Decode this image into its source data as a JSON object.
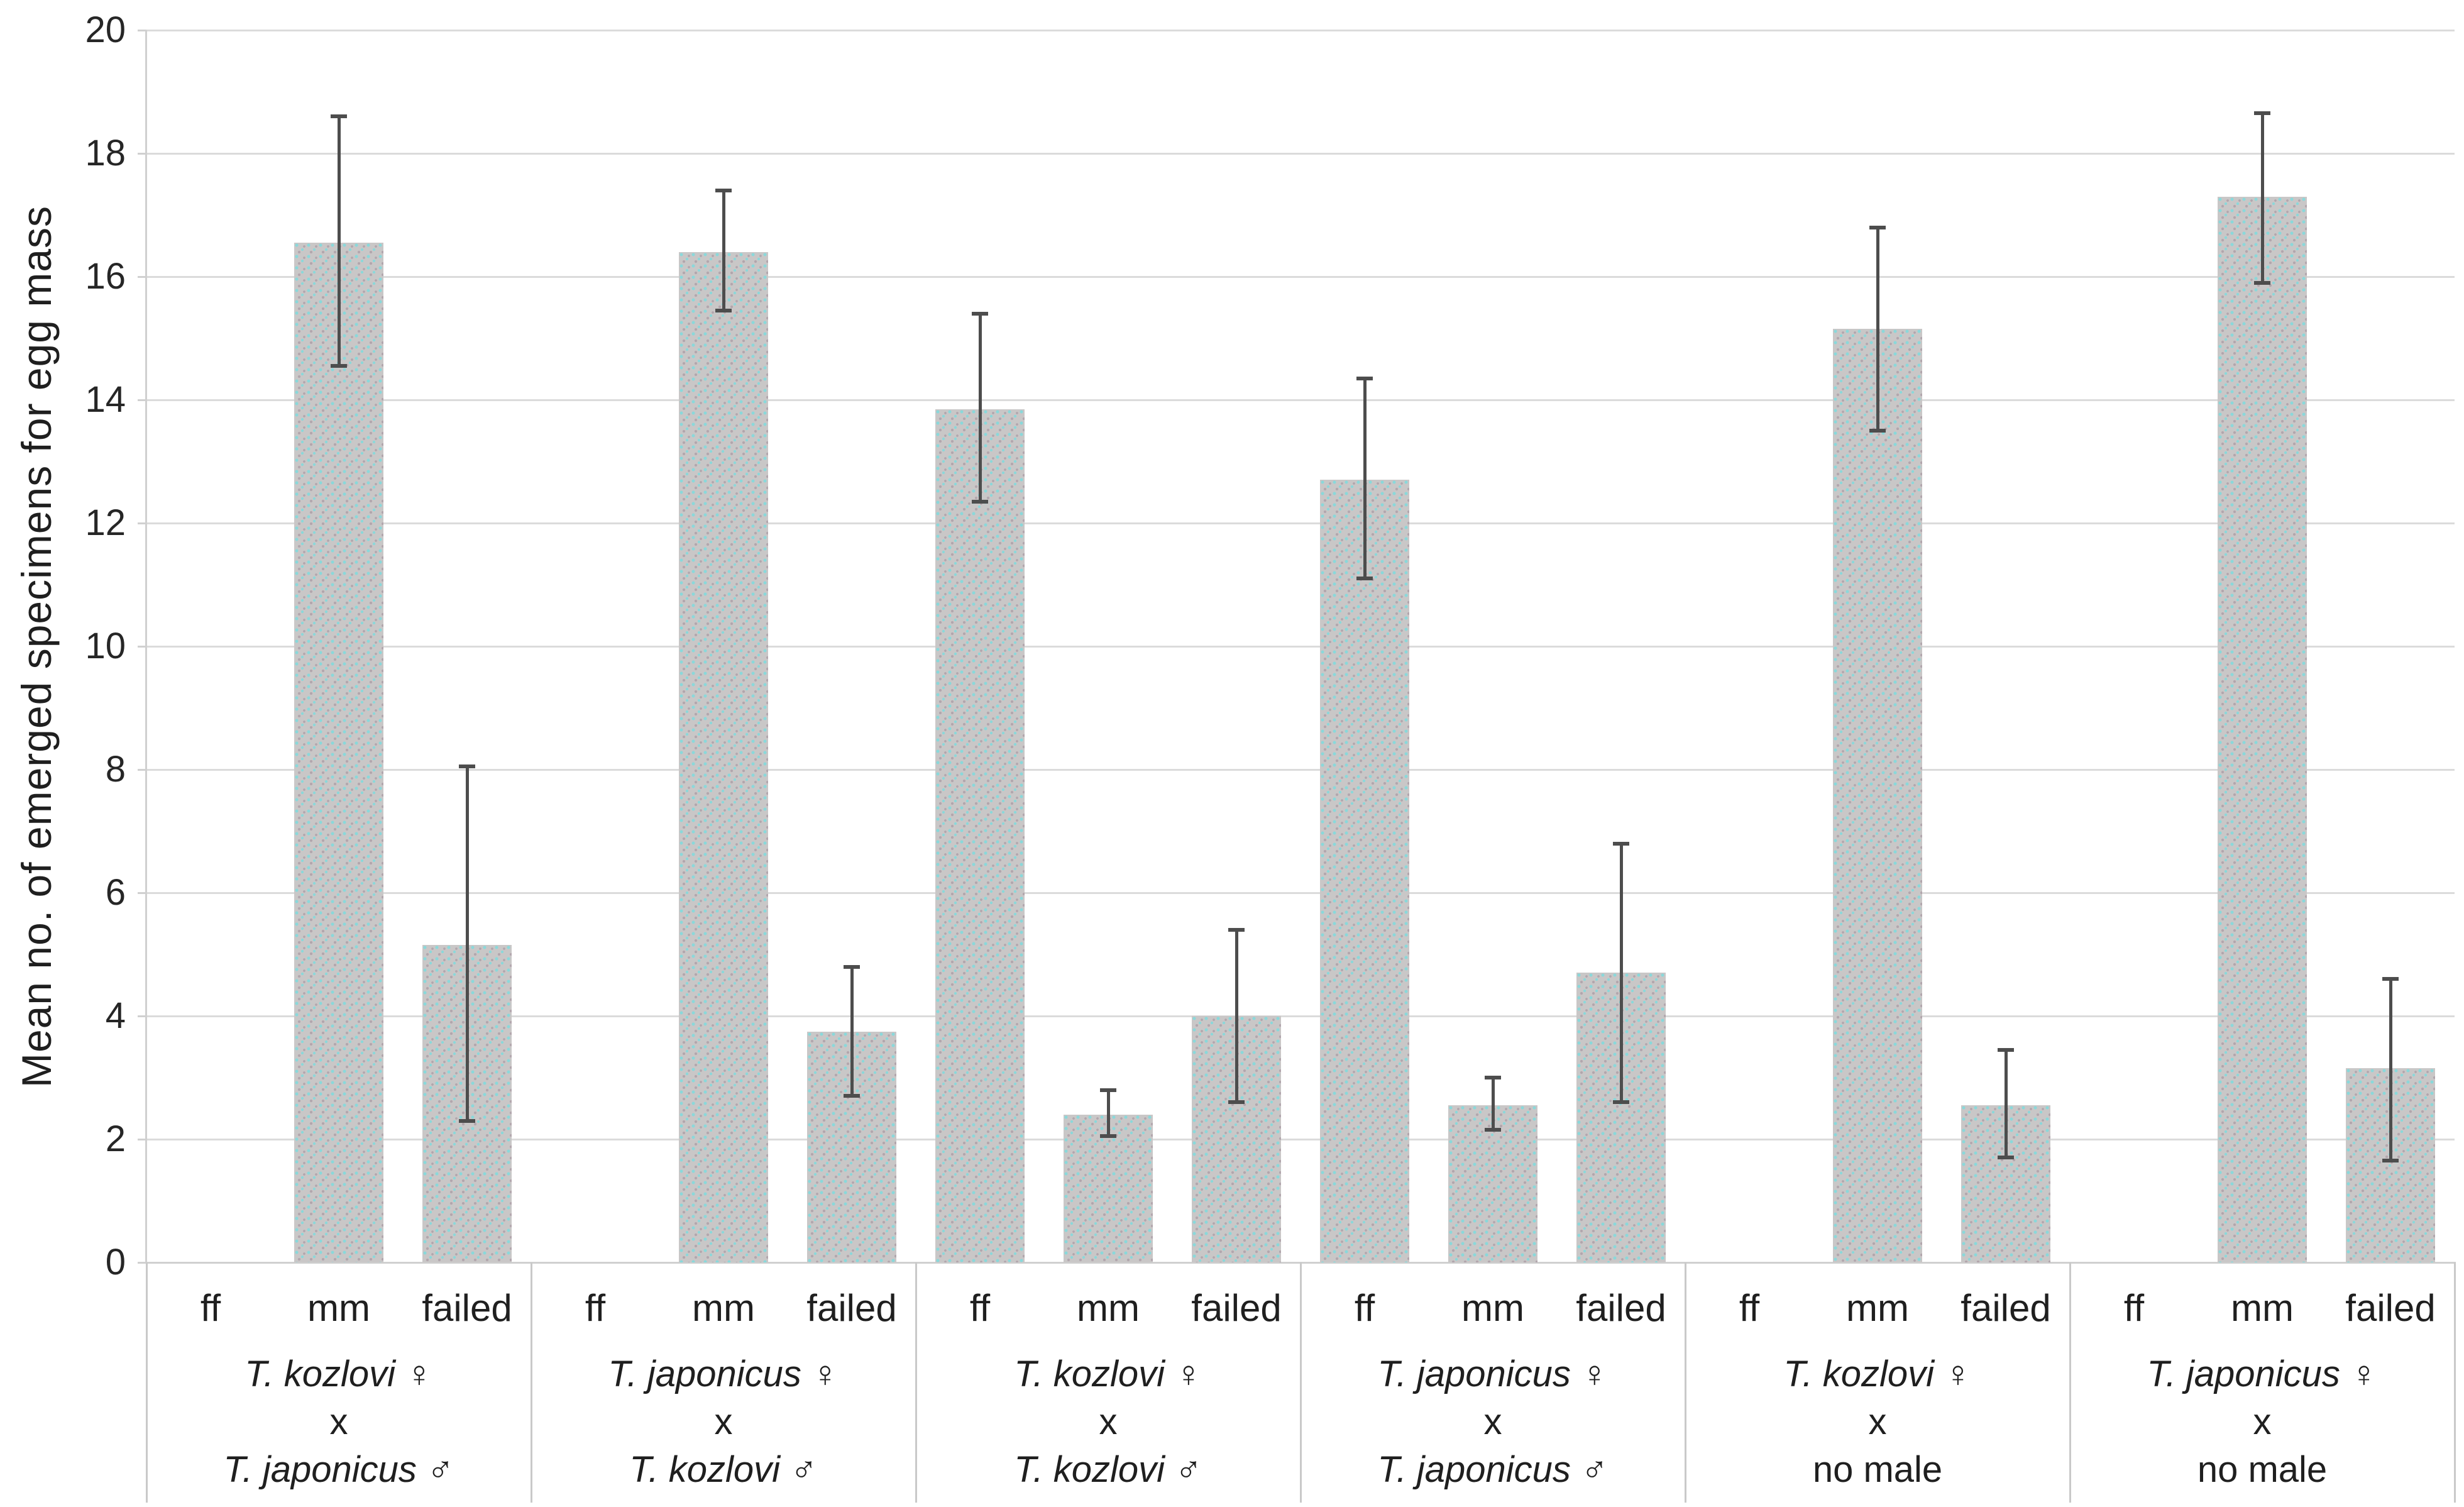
{
  "chart_data": {
    "type": "bar",
    "title": "",
    "ylabel": "Mean no. of emerged specimens for egg mass",
    "ylim": [
      0,
      20
    ],
    "ytick_step": 2,
    "grid": true,
    "legend_position": "none",
    "bar_categories": [
      "ff",
      "mm",
      "failed"
    ],
    "groups": [
      {
        "female": "T. kozlovi",
        "female_symbol": "♀",
        "cross": "x",
        "male": "T. japonicus",
        "male_symbol": "♂",
        "male_italic": true,
        "series": [
          {
            "cat": "ff",
            "value": null,
            "err_lo": null,
            "err_hi": null
          },
          {
            "cat": "mm",
            "value": 16.55,
            "err_lo": 14.55,
            "err_hi": 18.6
          },
          {
            "cat": "failed",
            "value": 5.15,
            "err_lo": 2.3,
            "err_hi": 8.05
          }
        ]
      },
      {
        "female": "T. japonicus",
        "female_symbol": "♀",
        "cross": "x",
        "male": "T. kozlovi",
        "male_symbol": "♂",
        "male_italic": true,
        "series": [
          {
            "cat": "ff",
            "value": null,
            "err_lo": null,
            "err_hi": null
          },
          {
            "cat": "mm",
            "value": 16.4,
            "err_lo": 15.45,
            "err_hi": 17.4
          },
          {
            "cat": "failed",
            "value": 3.75,
            "err_lo": 2.7,
            "err_hi": 4.8
          }
        ]
      },
      {
        "female": "T. kozlovi",
        "female_symbol": "♀",
        "cross": "x",
        "male": "T. kozlovi",
        "male_symbol": "♂",
        "male_italic": true,
        "series": [
          {
            "cat": "ff",
            "value": 13.85,
            "err_lo": 12.35,
            "err_hi": 15.4
          },
          {
            "cat": "mm",
            "value": 2.4,
            "err_lo": 2.05,
            "err_hi": 2.8
          },
          {
            "cat": "failed",
            "value": 4.0,
            "err_lo": 2.6,
            "err_hi": 5.4
          }
        ]
      },
      {
        "female": "T. japonicus",
        "female_symbol": "♀",
        "cross": "x",
        "male": "T. japonicus",
        "male_symbol": "♂",
        "male_italic": true,
        "series": [
          {
            "cat": "ff",
            "value": 12.7,
            "err_lo": 11.1,
            "err_hi": 14.35
          },
          {
            "cat": "mm",
            "value": 2.55,
            "err_lo": 2.15,
            "err_hi": 3.0
          },
          {
            "cat": "failed",
            "value": 4.7,
            "err_lo": 2.6,
            "err_hi": 6.8
          }
        ]
      },
      {
        "female": "T. kozlovi",
        "female_symbol": "♀",
        "cross": "x",
        "male": "no male",
        "male_symbol": "",
        "male_italic": false,
        "series": [
          {
            "cat": "ff",
            "value": null,
            "err_lo": null,
            "err_hi": null
          },
          {
            "cat": "mm",
            "value": 15.15,
            "err_lo": 13.5,
            "err_hi": 16.8
          },
          {
            "cat": "failed",
            "value": 2.55,
            "err_lo": 1.7,
            "err_hi": 3.45
          }
        ]
      },
      {
        "female": "T. japonicus",
        "female_symbol": "♀",
        "cross": "x",
        "male": "no male",
        "male_symbol": "",
        "male_italic": false,
        "series": [
          {
            "cat": "ff",
            "value": null,
            "err_lo": null,
            "err_hi": null
          },
          {
            "cat": "mm",
            "value": 17.3,
            "err_lo": 15.9,
            "err_hi": 18.65
          },
          {
            "cat": "failed",
            "value": 3.15,
            "err_lo": 1.65,
            "err_hi": 4.6
          }
        ]
      }
    ],
    "colors": {
      "bar_base": "#c9c7c7",
      "bar_dot_cyan": "#8ad8da",
      "bar_dot_mauve": "#b2a6ad",
      "error_bar": "#4d4d4d",
      "gridline": "#dbdbdb",
      "axis_line": "#d0d0d0",
      "divider": "#c9c9c9",
      "text": "#1f1f1f"
    }
  }
}
